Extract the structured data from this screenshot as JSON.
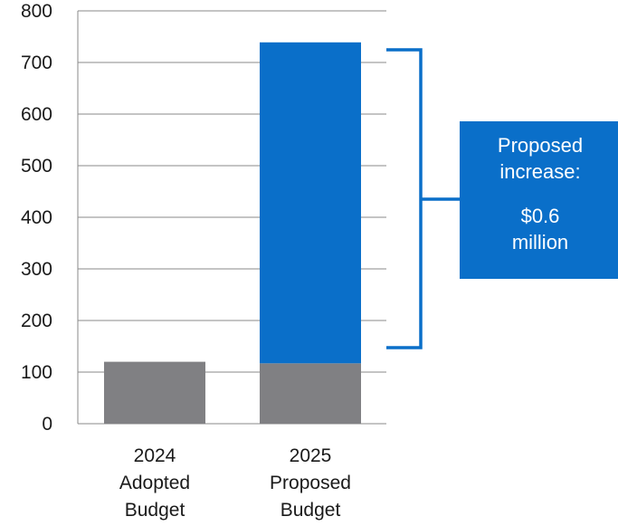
{
  "chart_data": {
    "type": "bar",
    "stacked": true,
    "categories": [
      [
        "2024",
        "Adopted",
        "Budget"
      ],
      [
        "2025",
        "Proposed",
        "Budget"
      ]
    ],
    "series": [
      {
        "values": [
          120,
          117
        ],
        "color": "#808083"
      },
      {
        "values": [
          0,
          622
        ],
        "color": "#0a6fc9"
      }
    ],
    "yticks": [
      "0",
      "100",
      "200",
      "300",
      "400",
      "500",
      "600",
      "700",
      "800"
    ],
    "ylim": [
      0,
      800
    ],
    "grid": true,
    "legend": "none"
  },
  "callout": {
    "line1": "Proposed",
    "line2": "increase:",
    "line3": "$0.6",
    "line4": "million",
    "color": "#0a6fc9"
  }
}
